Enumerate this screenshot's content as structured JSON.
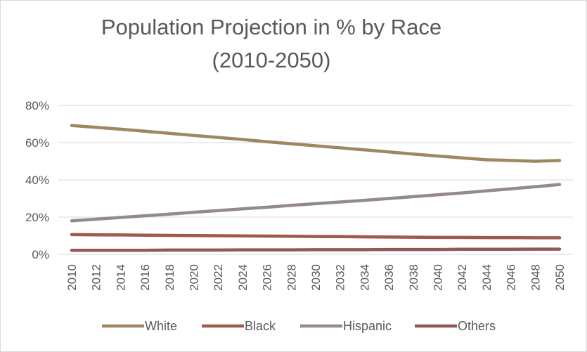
{
  "chart_data": {
    "type": "line",
    "title": "Population Projection in % by Race",
    "subtitle": "(2010-2050)",
    "x": [
      2010,
      2012,
      2014,
      2016,
      2018,
      2020,
      2022,
      2024,
      2026,
      2028,
      2030,
      2032,
      2034,
      2036,
      2038,
      2040,
      2042,
      2044,
      2046,
      2048,
      2050
    ],
    "x_tick_labels": [
      "2010",
      "2012",
      "2014",
      "2016",
      "2018",
      "2020",
      "2022",
      "2024",
      "2026",
      "2028",
      "2030",
      "2032",
      "2034",
      "2036",
      "2038",
      "2040",
      "2042",
      "2044",
      "2046",
      "2048",
      "2050"
    ],
    "y_tick_labels": [
      "0%",
      "20%",
      "40%",
      "60%",
      "80%"
    ],
    "y_ticks": [
      0,
      20,
      40,
      60,
      80
    ],
    "ylim": [
      0,
      80
    ],
    "xlabel": "",
    "ylabel": "",
    "grid": true,
    "legend_position": "bottom",
    "series": [
      {
        "name": "White",
        "color": "#9e8862",
        "values": [
          69.2,
          68.2,
          67.2,
          66.1,
          65.0,
          63.9,
          62.8,
          61.7,
          60.5,
          59.4,
          58.3,
          57.2,
          56.1,
          55.0,
          53.9,
          52.8,
          51.8,
          50.8,
          50.4,
          50.0,
          50.4
        ]
      },
      {
        "name": "Black",
        "color": "#a05a4c",
        "values": [
          10.6,
          10.5,
          10.4,
          10.3,
          10.2,
          10.1,
          10.0,
          9.9,
          9.8,
          9.7,
          9.6,
          9.5,
          9.4,
          9.3,
          9.2,
          9.1,
          9.1,
          9.0,
          9.0,
          8.9,
          8.9
        ]
      },
      {
        "name": "Hispanic",
        "color": "#958a8b",
        "values": [
          18.0,
          18.9,
          19.8,
          20.7,
          21.6,
          22.6,
          23.5,
          24.4,
          25.3,
          26.3,
          27.2,
          28.1,
          29.0,
          30.0,
          31.0,
          32.0,
          33.0,
          34.1,
          35.2,
          36.3,
          37.5
        ]
      },
      {
        "name": "Others",
        "color": "#8f5a56",
        "values": [
          2.2,
          2.2,
          2.2,
          2.2,
          2.3,
          2.3,
          2.3,
          2.4,
          2.4,
          2.4,
          2.5,
          2.5,
          2.5,
          2.6,
          2.6,
          2.6,
          2.7,
          2.7,
          2.7,
          2.8,
          2.8
        ]
      }
    ]
  }
}
